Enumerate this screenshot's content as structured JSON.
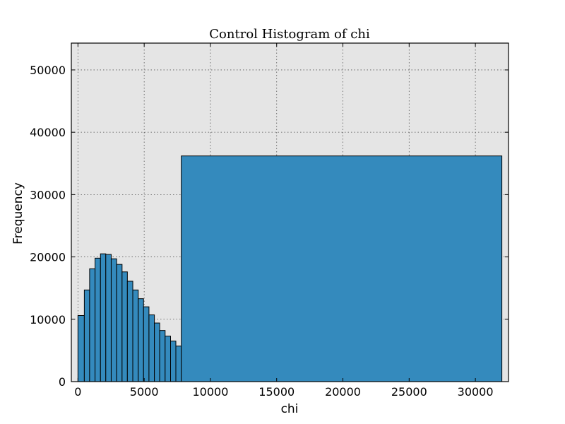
{
  "chart_data": {
    "type": "bar",
    "title": "Control Histogram of chi",
    "xlabel": "chi",
    "ylabel": "Frequency",
    "xlim": [
      -500,
      32500
    ],
    "ylim": [
      0,
      54300
    ],
    "grid": true,
    "background_color": "#e5e5e5",
    "bar_color": "#348abd",
    "xticks": [
      0,
      5000,
      10000,
      15000,
      20000,
      25000,
      30000
    ],
    "xtick_labels": [
      "0",
      "5000",
      "10000",
      "15000",
      "20000",
      "25000",
      "30000"
    ],
    "yticks": [
      0,
      10000,
      20000,
      30000,
      40000,
      50000
    ],
    "ytick_labels": [
      "0",
      "10000",
      "20000",
      "30000",
      "40000",
      "50000"
    ],
    "bins": [
      {
        "x0": 0,
        "x1": 480,
        "value": 10600
      },
      {
        "x0": 480,
        "x1": 880,
        "value": 14700
      },
      {
        "x0": 880,
        "x1": 1290,
        "value": 18100
      },
      {
        "x0": 1290,
        "x1": 1700,
        "value": 19800
      },
      {
        "x0": 1700,
        "x1": 2100,
        "value": 20500
      },
      {
        "x0": 2100,
        "x1": 2510,
        "value": 20400
      },
      {
        "x0": 2510,
        "x1": 2920,
        "value": 19700
      },
      {
        "x0": 2920,
        "x1": 3330,
        "value": 18800
      },
      {
        "x0": 3330,
        "x1": 3730,
        "value": 17600
      },
      {
        "x0": 3730,
        "x1": 4140,
        "value": 16100
      },
      {
        "x0": 4140,
        "x1": 4550,
        "value": 14700
      },
      {
        "x0": 4550,
        "x1": 4950,
        "value": 13300
      },
      {
        "x0": 4950,
        "x1": 5360,
        "value": 12000
      },
      {
        "x0": 5360,
        "x1": 5770,
        "value": 10700
      },
      {
        "x0": 5770,
        "x1": 6170,
        "value": 9400
      },
      {
        "x0": 6170,
        "x1": 6580,
        "value": 8200
      },
      {
        "x0": 6580,
        "x1": 6990,
        "value": 7300
      },
      {
        "x0": 6990,
        "x1": 7390,
        "value": 6500
      },
      {
        "x0": 7390,
        "x1": 7800,
        "value": 5700
      },
      {
        "x0": 7800,
        "x1": 32000,
        "value": 36200
      }
    ]
  }
}
